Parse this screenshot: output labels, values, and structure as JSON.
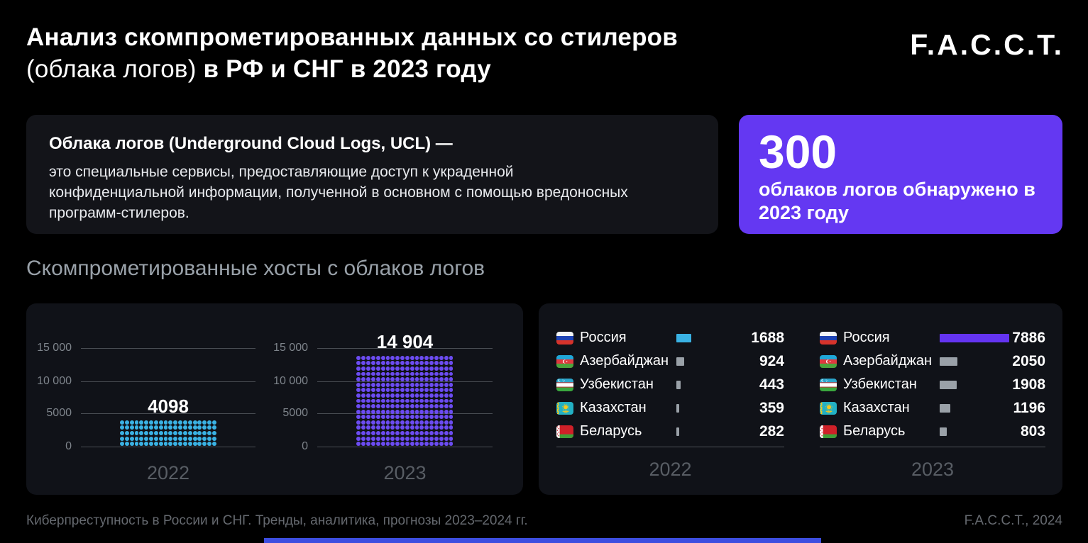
{
  "header": {
    "title_line1": "Анализ скомпрометированных данных со стилеров",
    "title_line2_regular": "(облака логов)",
    "title_line2_bold": "в РФ и СНГ в 2023 году",
    "logo": "F.A.C.C.T."
  },
  "definition_card": {
    "heading": "Облака логов (Underground Cloud Logs, UCL) —",
    "body": "это специальные сервисы, предоставляющие доступ к украденной конфиденциальной информации, полученной в основном с помощью вредоносных программ-стилеров."
  },
  "highlight_card": {
    "number": "300",
    "caption": "облаков логов обнаружено в 2023 году"
  },
  "section": {
    "title": "Скомпрометированные хосты с облаков логов"
  },
  "colors": {
    "accent_purple": "#6438f2",
    "accent_cyan": "#3ab2e4",
    "gray_bar": "#9aa1a8",
    "bottom_bar": "#3d4ee0",
    "panel_bg": "#101218"
  },
  "chart_data": [
    {
      "type": "bar",
      "variant": "dot-matrix",
      "title": "Скомпрометированные хосты с облаков логов",
      "categories": [
        "2022",
        "2023"
      ],
      "values": [
        4098,
        14904
      ],
      "value_labels": [
        "4098",
        "14 904"
      ],
      "colors": [
        "#3ab2e4",
        "#6c4cf2"
      ],
      "y_ticks": [
        "15 000",
        "10 000",
        "5000",
        "0"
      ],
      "ylim": [
        0,
        15000
      ],
      "grid": true,
      "legend": "none",
      "dot_grid": {
        "cols": 20,
        "rows": [
          5,
          17
        ]
      }
    },
    {
      "type": "bar",
      "title": "Скомпрометированные хосты по странам",
      "max_value": 7886,
      "groups": [
        {
          "year": "2022",
          "rows": [
            {
              "country": "Россия",
              "value": 1688,
              "bar_color": "#3ab2e4"
            },
            {
              "country": "Азербайджан",
              "value": 924,
              "bar_color": "#9aa1a8"
            },
            {
              "country": "Узбекистан",
              "value": 443,
              "bar_color": "#9aa1a8"
            },
            {
              "country": "Казахстан",
              "value": 359,
              "bar_color": "#9aa1a8"
            },
            {
              "country": "Беларусь",
              "value": 282,
              "bar_color": "#9aa1a8"
            }
          ]
        },
        {
          "year": "2023",
          "rows": [
            {
              "country": "Россия",
              "value": 7886,
              "bar_color": "#6434f2"
            },
            {
              "country": "Азербайджан",
              "value": 2050,
              "bar_color": "#9aa1a8"
            },
            {
              "country": "Узбекистан",
              "value": 1908,
              "bar_color": "#9aa1a8"
            },
            {
              "country": "Казахстан",
              "value": 1196,
              "bar_color": "#9aa1a8"
            },
            {
              "country": "Беларусь",
              "value": 803,
              "bar_color": "#9aa1a8"
            }
          ]
        }
      ]
    }
  ],
  "footer": {
    "left": "Киберпреступность в России и СНГ. Тренды, аналитика, прогнозы 2023–2024 гг.",
    "right": "F.A.C.C.T., 2024"
  }
}
